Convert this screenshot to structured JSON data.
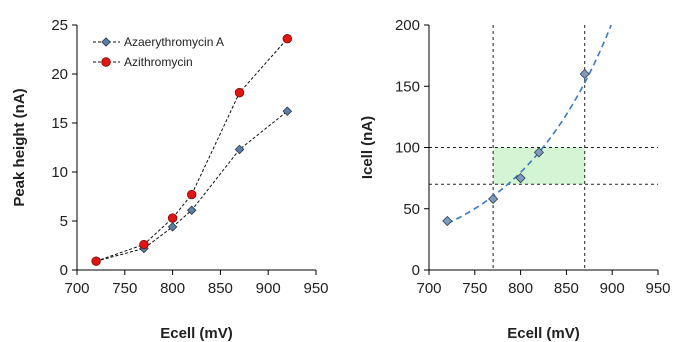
{
  "chart_data": [
    {
      "type": "line",
      "xlabel": "Ecell (mV)",
      "ylabel": "Peak height (nA)",
      "xlim": [
        700,
        950
      ],
      "ylim": [
        0,
        25
      ],
      "xticks": [
        700,
        750,
        800,
        850,
        900,
        950
      ],
      "yticks": [
        0,
        5,
        10,
        15,
        20,
        25
      ],
      "grid": false,
      "legend": "top-left",
      "series": [
        {
          "name": "Azaerythromycin A",
          "marker": "diamond",
          "color": "#5b7fa6",
          "x": [
            720,
            770,
            800,
            820,
            870,
            920
          ],
          "y": [
            0.9,
            2.2,
            4.4,
            6.1,
            12.3,
            16.2
          ]
        },
        {
          "name": "Azithromycin",
          "marker": "circle",
          "color": "#e8120c",
          "x": [
            720,
            770,
            800,
            820,
            870,
            920
          ],
          "y": [
            0.9,
            2.6,
            5.3,
            7.7,
            18.1,
            23.6
          ]
        }
      ]
    },
    {
      "type": "scatter",
      "xlabel": "Ecell (mV)",
      "ylabel": "Icell (nA)",
      "xlim": [
        700,
        950
      ],
      "ylim": [
        0,
        200
      ],
      "xticks": [
        700,
        750,
        800,
        850,
        900,
        950
      ],
      "yticks": [
        0,
        50,
        100,
        150,
        200
      ],
      "grid": false,
      "series": [
        {
          "marker": "diamond",
          "color": "#7e9bbb",
          "x": [
            720,
            770,
            800,
            820,
            870
          ],
          "y": [
            40,
            58,
            75,
            96,
            160
          ]
        }
      ],
      "fit_curve": {
        "style": "dashed",
        "color": "#3c7bc0"
      },
      "reference_lines": {
        "x": [
          770,
          870
        ],
        "y": [
          70,
          100
        ],
        "style": "dotted"
      },
      "highlight_region": {
        "x": [
          770,
          870
        ],
        "y": [
          70,
          100
        ],
        "color": "#d4f5d4"
      }
    }
  ]
}
